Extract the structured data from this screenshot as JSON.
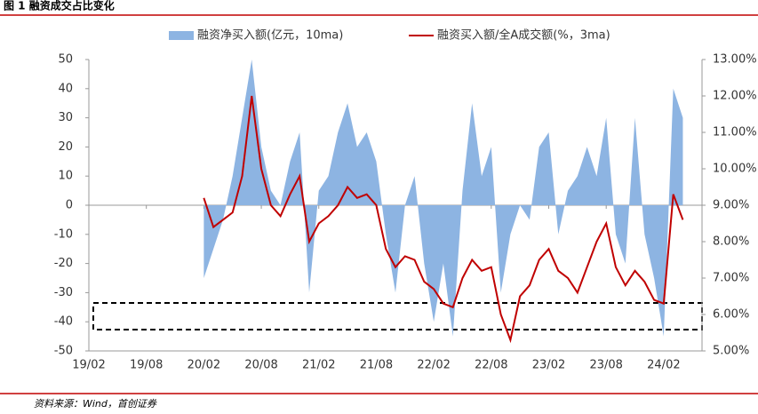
{
  "chart_data": {
    "type": "area-line",
    "title": "图 1 融资成交占比变化",
    "source": "资料来源：Wind，首创证券",
    "categories": [
      "19/02",
      null,
      null,
      null,
      null,
      null,
      "19/08",
      null,
      null,
      null,
      null,
      null,
      "20/02",
      null,
      null,
      null,
      null,
      null,
      "20/08",
      null,
      null,
      null,
      null,
      null,
      "21/02",
      null,
      null,
      null,
      null,
      null,
      "21/08",
      null,
      null,
      null,
      null,
      null,
      "22/02",
      null,
      null,
      null,
      null,
      null,
      "22/08",
      null,
      null,
      null,
      null,
      null,
      "23/02",
      null,
      null,
      null,
      null,
      null,
      "23/08",
      null,
      null,
      null,
      null,
      null,
      "24/02",
      null,
      null
    ],
    "series": [
      {
        "name": "融资净买入额(亿元，10ma)",
        "kind": "area",
        "color": "#8db4e2",
        "axis": "y",
        "values": [
          null,
          null,
          null,
          null,
          null,
          null,
          null,
          null,
          null,
          null,
          null,
          null,
          -25,
          -15,
          -5,
          10,
          30,
          50,
          20,
          5,
          0,
          15,
          25,
          -30,
          5,
          10,
          25,
          35,
          20,
          25,
          15,
          -10,
          -30,
          0,
          10,
          -20,
          -40,
          -20,
          -45,
          5,
          35,
          10,
          20,
          -30,
          -10,
          0,
          -5,
          20,
          25,
          -10,
          5,
          10,
          20,
          10,
          30,
          -10,
          -20,
          30,
          -10,
          -25,
          -45,
          40,
          30
        ]
      },
      {
        "name": "融资买入额/全A成交额(%，3ma)",
        "kind": "line",
        "color": "#c00000",
        "axis": "y2",
        "values": [
          null,
          null,
          null,
          null,
          null,
          null,
          null,
          null,
          null,
          null,
          null,
          null,
          9.2,
          8.4,
          8.6,
          8.8,
          9.8,
          12.0,
          10.0,
          9.0,
          8.7,
          9.3,
          9.8,
          8.0,
          8.5,
          8.7,
          9.0,
          9.5,
          9.2,
          9.3,
          9.0,
          7.8,
          7.3,
          7.6,
          7.5,
          6.9,
          6.7,
          6.3,
          6.2,
          7.0,
          7.5,
          7.2,
          7.3,
          6.0,
          5.3,
          6.5,
          6.8,
          7.5,
          7.8,
          7.2,
          7.0,
          6.6,
          7.3,
          8.0,
          8.5,
          7.3,
          6.8,
          7.2,
          6.9,
          6.4,
          6.3,
          9.3,
          8.6
        ]
      }
    ],
    "ylim": [
      -50,
      50
    ],
    "yticks": [
      -50,
      -40,
      -30,
      -20,
      -10,
      0,
      10,
      20,
      30,
      40,
      50
    ],
    "y2lim": [
      5,
      13
    ],
    "y2ticks": [
      {
        "value": 5,
        "label": "5.00%"
      },
      {
        "value": 6,
        "label": "6.00%"
      },
      {
        "value": 7,
        "label": "7.00%"
      },
      {
        "value": 8,
        "label": "8.00%"
      },
      {
        "value": 9,
        "label": "9.00%"
      },
      {
        "value": 10,
        "label": "10.00%"
      },
      {
        "value": 11,
        "label": "11.00%"
      },
      {
        "value": 12,
        "label": "12.00%"
      },
      {
        "value": 13,
        "label": "13.00%"
      }
    ],
    "grid": false
  }
}
